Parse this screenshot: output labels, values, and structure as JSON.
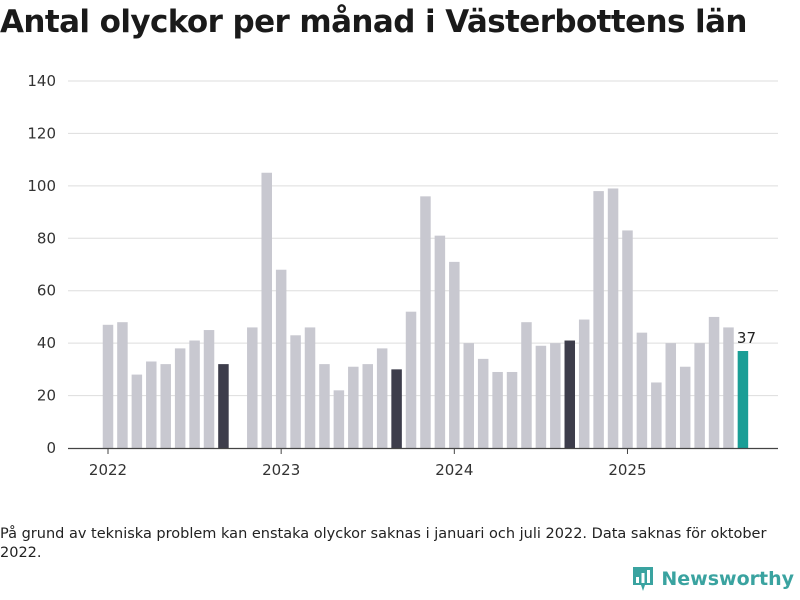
{
  "title": "Antal olyckor per månad i Västerbottens län",
  "footnote": "På grund av tekniska problem kan enstaka olyckor saknas i januari och juli 2022. Data saknas för oktober 2022.",
  "brand": {
    "name": "Newsworthy",
    "icon": "newsworthy-logo-icon",
    "color": "#3aa3a0"
  },
  "colors": {
    "normal": "#c8c8d0",
    "same_month": "#3d3d4b",
    "latest": "#1a9e96",
    "grid": "#dddddd",
    "axis": "#444444"
  },
  "chart_data": {
    "type": "bar",
    "title": "Antal olyckor per månad i Västerbottens län",
    "xlabel": "",
    "ylabel": "",
    "ylim": [
      0,
      140
    ],
    "yticks": [
      0,
      20,
      40,
      60,
      80,
      100,
      120,
      140
    ],
    "xticks": [
      "2022",
      "2023",
      "2024",
      "2025"
    ],
    "series": [
      {
        "name": "Antal olyckor",
        "points": [
          {
            "month": "2022-01",
            "value": 47
          },
          {
            "month": "2022-02",
            "value": 48
          },
          {
            "month": "2022-03",
            "value": 28
          },
          {
            "month": "2022-04",
            "value": 33
          },
          {
            "month": "2022-05",
            "value": 32
          },
          {
            "month": "2022-06",
            "value": 38
          },
          {
            "month": "2022-07",
            "value": 41
          },
          {
            "month": "2022-08",
            "value": 45
          },
          {
            "month": "2022-09",
            "value": 32,
            "highlight": "same_month"
          },
          {
            "month": "2022-10",
            "value": null
          },
          {
            "month": "2022-11",
            "value": 46
          },
          {
            "month": "2022-12",
            "value": 105
          },
          {
            "month": "2023-01",
            "value": 68
          },
          {
            "month": "2023-02",
            "value": 43
          },
          {
            "month": "2023-03",
            "value": 46
          },
          {
            "month": "2023-04",
            "value": 32
          },
          {
            "month": "2023-05",
            "value": 22
          },
          {
            "month": "2023-06",
            "value": 31
          },
          {
            "month": "2023-07",
            "value": 32
          },
          {
            "month": "2023-08",
            "value": 38
          },
          {
            "month": "2023-09",
            "value": 30,
            "highlight": "same_month"
          },
          {
            "month": "2023-10",
            "value": 52
          },
          {
            "month": "2023-11",
            "value": 96
          },
          {
            "month": "2023-12",
            "value": 81
          },
          {
            "month": "2024-01",
            "value": 71
          },
          {
            "month": "2024-02",
            "value": 40
          },
          {
            "month": "2024-03",
            "value": 34
          },
          {
            "month": "2024-04",
            "value": 29
          },
          {
            "month": "2024-05",
            "value": 29
          },
          {
            "month": "2024-06",
            "value": 48
          },
          {
            "month": "2024-07",
            "value": 39
          },
          {
            "month": "2024-08",
            "value": 40
          },
          {
            "month": "2024-09",
            "value": 41,
            "highlight": "same_month"
          },
          {
            "month": "2024-10",
            "value": 49
          },
          {
            "month": "2024-11",
            "value": 98
          },
          {
            "month": "2024-12",
            "value": 99
          },
          {
            "month": "2025-01",
            "value": 83
          },
          {
            "month": "2025-02",
            "value": 44
          },
          {
            "month": "2025-03",
            "value": 25
          },
          {
            "month": "2025-04",
            "value": 40
          },
          {
            "month": "2025-05",
            "value": 31
          },
          {
            "month": "2025-06",
            "value": 40
          },
          {
            "month": "2025-07",
            "value": 50
          },
          {
            "month": "2025-08",
            "value": 46
          },
          {
            "month": "2025-09",
            "value": 37,
            "highlight": "latest",
            "label": "37"
          }
        ]
      }
    ]
  }
}
